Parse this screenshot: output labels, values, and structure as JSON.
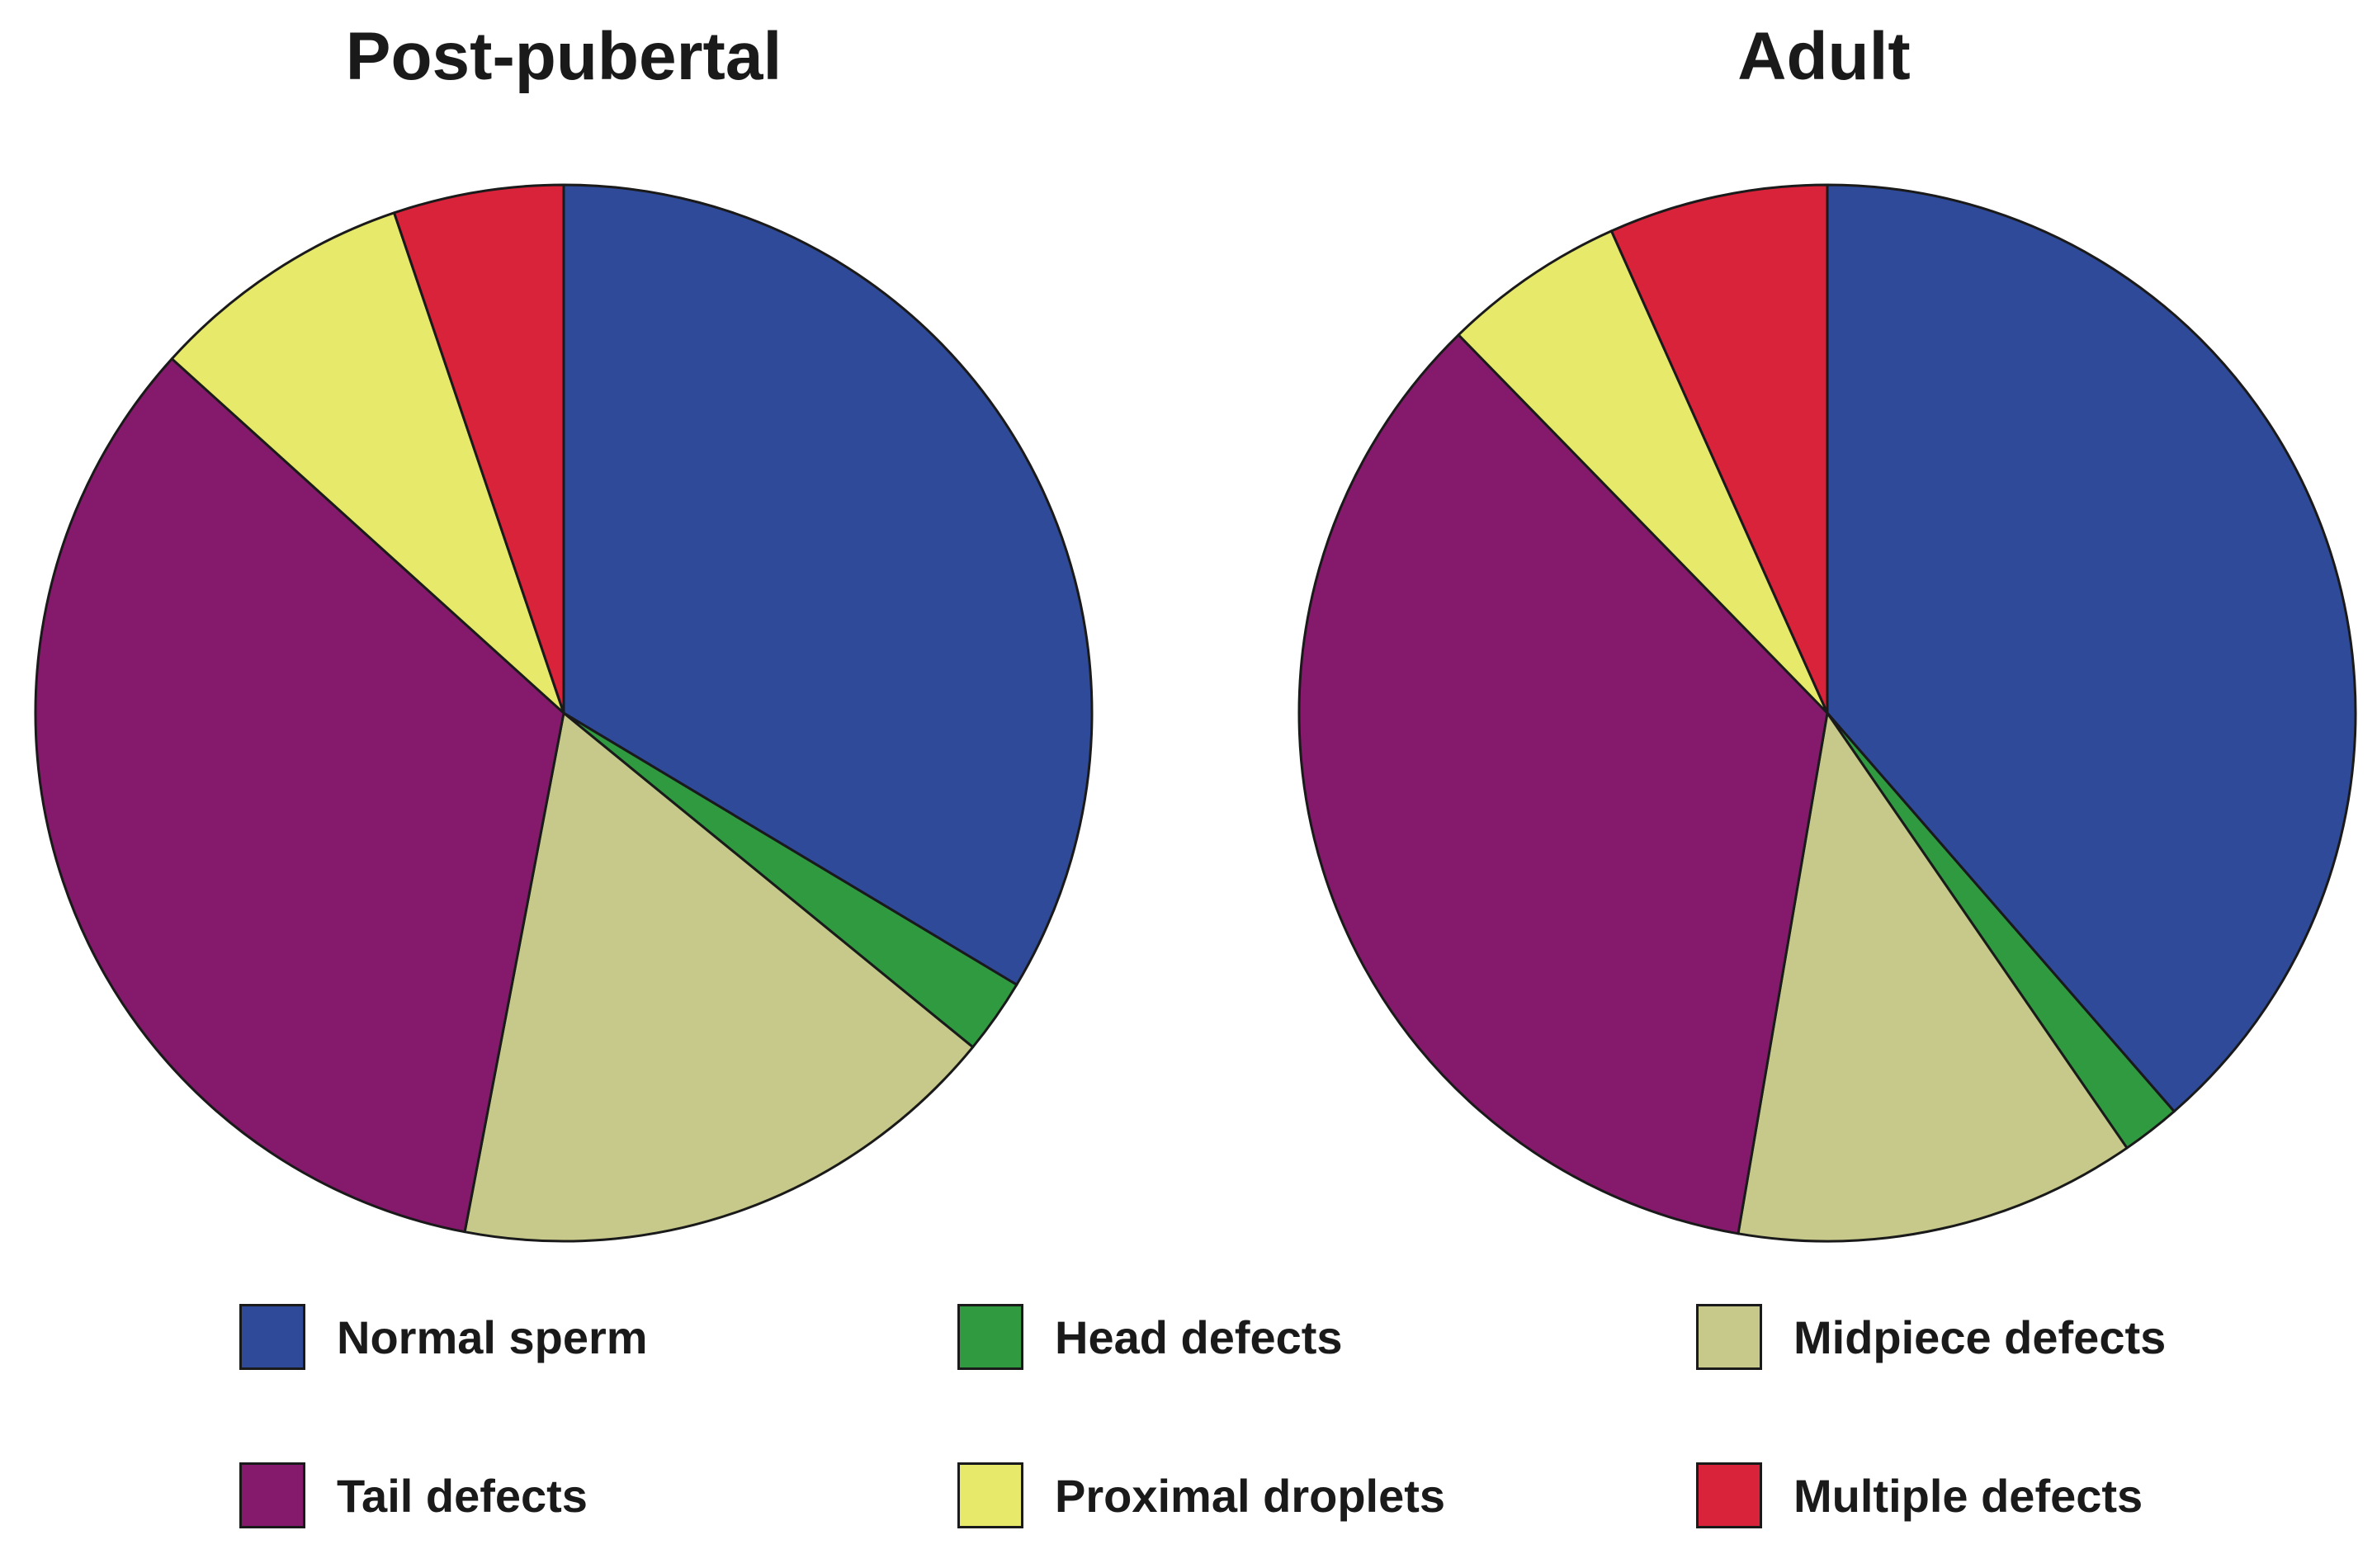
{
  "chart_data": [
    {
      "type": "pie",
      "title": "Post-pubertal",
      "categories": [
        "Normal sperm",
        "Head defects",
        "Midpiece defects",
        "Tail defects",
        "Proximal droplets",
        "Multiple defects"
      ],
      "values": [
        33.6,
        2.3,
        17.1,
        33.7,
        8.1,
        5.2
      ],
      "colors": [
        "#2e4a99",
        "#2f9a40",
        "#c6c98a",
        "#851a6c",
        "#e6e96a",
        "#d9233a"
      ]
    },
    {
      "type": "pie",
      "title": "Adult",
      "categories": [
        "Normal sperm",
        "Head defects",
        "Midpiece defects",
        "Tail defects",
        "Proximal droplets",
        "Multiple defects"
      ],
      "values": [
        38.6,
        1.8,
        12.3,
        35.0,
        5.6,
        6.7
      ],
      "colors": [
        "#2e4a99",
        "#2f9a40",
        "#c6c98a",
        "#851a6c",
        "#e6e96a",
        "#d9233a"
      ]
    }
  ],
  "legend": [
    {
      "label": "Normal sperm",
      "color": "#2e4a99"
    },
    {
      "label": "Head defects",
      "color": "#2f9a40"
    },
    {
      "label": "Midpiece defects",
      "color": "#c6c98a"
    },
    {
      "label": "Tail defects",
      "color": "#851a6c"
    },
    {
      "label": "Proximal droplets",
      "color": "#e6e96a"
    },
    {
      "label": "Multiple defects",
      "color": "#d9233a"
    }
  ]
}
